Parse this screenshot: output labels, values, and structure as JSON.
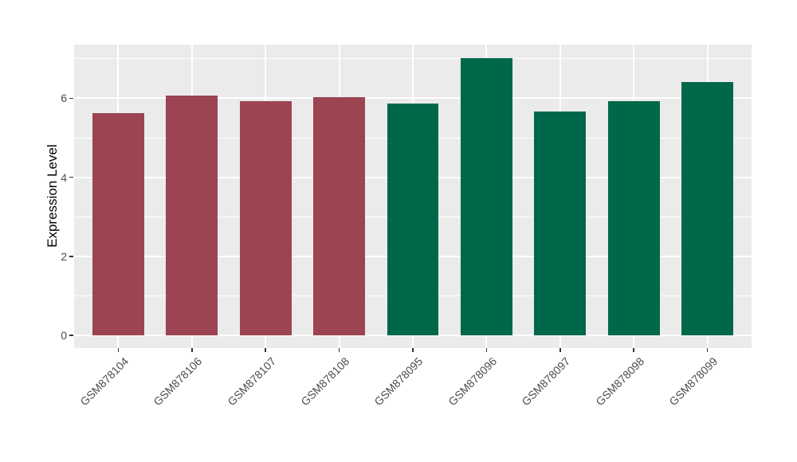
{
  "chart_data": {
    "type": "bar",
    "title": "",
    "xlabel": "",
    "ylabel": "Expression Level",
    "categories": [
      "GSM878104",
      "GSM878106",
      "GSM878107",
      "GSM878108",
      "GSM878095",
      "GSM878096",
      "GSM878097",
      "GSM878098",
      "GSM878099"
    ],
    "values": [
      5.62,
      6.08,
      5.92,
      6.02,
      5.87,
      7.01,
      5.66,
      5.93,
      6.41
    ],
    "bar_colors": [
      "#9C4451",
      "#9C4451",
      "#9C4451",
      "#9C4451",
      "#00684A",
      "#00684A",
      "#00684A",
      "#00684A",
      "#00684A"
    ],
    "group_colors": {
      "first_group": "#9C4451",
      "second_group": "#00684A"
    },
    "ylim": [
      -0.32,
      7.36
    ],
    "yticks_major": [
      0,
      2,
      4,
      6
    ],
    "ytick_labels": [
      "0",
      "2",
      "4",
      "6"
    ],
    "yticks_minor": [
      1,
      3,
      5,
      7
    ],
    "grid": "on",
    "legend": "none",
    "x_label_rotation_deg": 45,
    "style": {
      "panel_background": "#EBEBEB",
      "grid_color": "#FFFFFF",
      "tick_mark_color": "#333333",
      "tick_text_color": "#4D4D4D",
      "axis_title_color": "#000000",
      "page_background": "#FFFFFF"
    }
  }
}
